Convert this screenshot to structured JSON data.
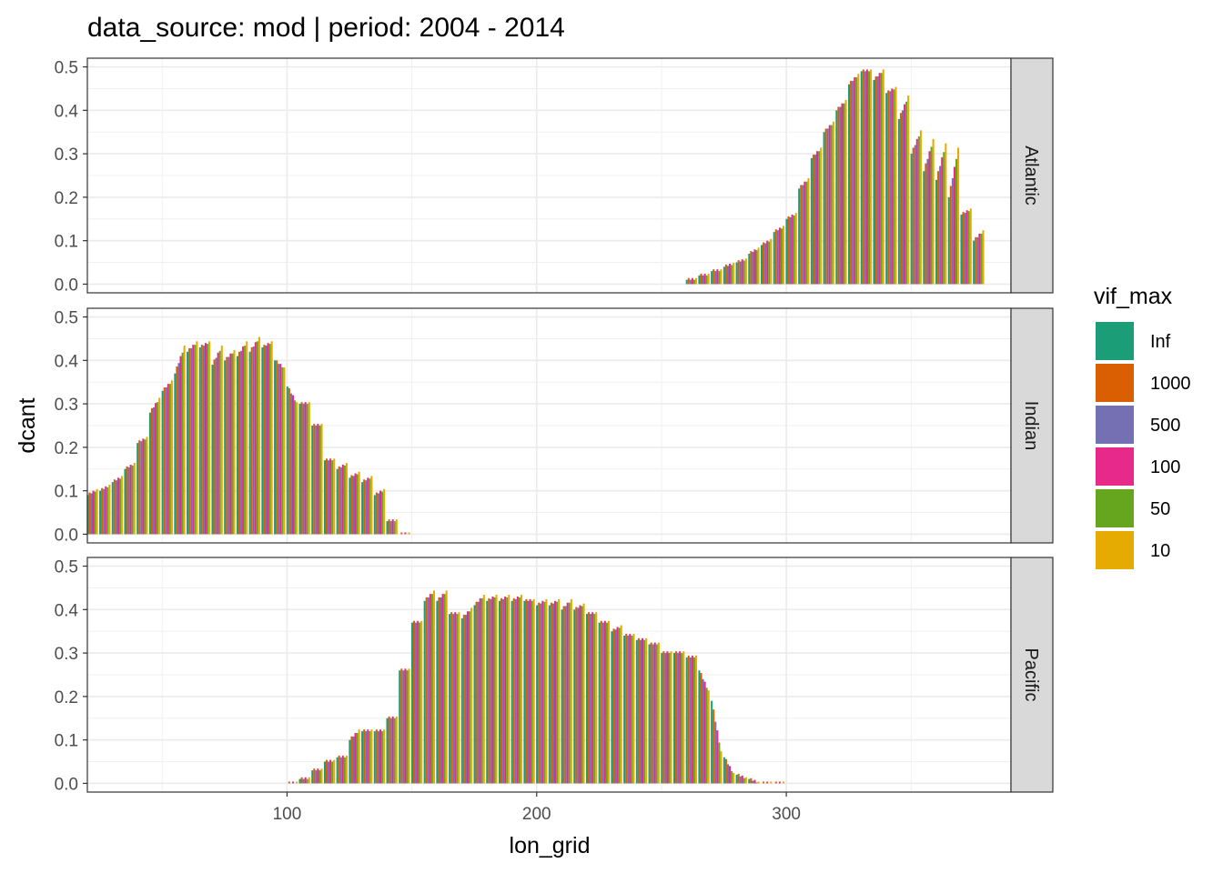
{
  "chart_data": {
    "type": "bar",
    "title": "data_source: mod | period: 2004 - 2014",
    "xlabel": "lon_grid",
    "ylabel": "dcant",
    "xlim": [
      20,
      390
    ],
    "ylim": [
      -0.02,
      0.52
    ],
    "x_ticks": [
      100,
      200,
      300
    ],
    "y_ticks": [
      0.0,
      0.1,
      0.2,
      0.3,
      0.4,
      0.5
    ],
    "grid": true,
    "legend_position": "right",
    "legend": {
      "title": "vif_max",
      "entries": [
        {
          "label": "Inf",
          "color": "#1B9E77"
        },
        {
          "label": "1000",
          "color": "#D95F02"
        },
        {
          "label": "500",
          "color": "#7570B3"
        },
        {
          "label": "100",
          "color": "#E7298A"
        },
        {
          "label": "50",
          "color": "#66A61E"
        },
        {
          "label": "10",
          "color": "#E6AB02"
        }
      ]
    },
    "series_order": [
      "Inf",
      "1000",
      "500",
      "100",
      "50",
      "10"
    ],
    "facet_by": "basin",
    "panels": [
      {
        "label": "Atlantic",
        "x": [
          262,
          267,
          272,
          277,
          282,
          287,
          292,
          297,
          302,
          307,
          312,
          317,
          322,
          327,
          332,
          337,
          342,
          347,
          352,
          357,
          362,
          367,
          372,
          377
        ],
        "values": [
          0.01,
          0.02,
          0.03,
          0.04,
          0.05,
          0.07,
          0.09,
          0.12,
          0.15,
          0.22,
          0.29,
          0.35,
          0.4,
          0.46,
          0.49,
          0.47,
          0.44,
          0.38,
          0.3,
          0.26,
          0.24,
          0.2,
          0.16,
          0.1
        ],
        "series_top_values": [
          0.01,
          0.02,
          0.03,
          0.045,
          0.055,
          0.08,
          0.1,
          0.13,
          0.16,
          0.24,
          0.31,
          0.37,
          0.42,
          0.48,
          0.49,
          0.49,
          0.45,
          0.43,
          0.35,
          0.33,
          0.32,
          0.31,
          0.17,
          0.12
        ]
      },
      {
        "label": "Indian",
        "x": [
          22,
          27,
          32,
          37,
          42,
          47,
          52,
          57,
          62,
          67,
          72,
          77,
          82,
          87,
          92,
          97,
          102,
          107,
          112,
          117,
          122,
          127,
          132,
          137,
          142,
          147
        ],
        "values": [
          0.09,
          0.1,
          0.12,
          0.15,
          0.21,
          0.28,
          0.33,
          0.37,
          0.42,
          0.43,
          0.39,
          0.4,
          0.41,
          0.42,
          0.43,
          0.4,
          0.34,
          0.3,
          0.25,
          0.17,
          0.15,
          0.13,
          0.12,
          0.09,
          0.03,
          0.0
        ],
        "series_top_values": [
          0.1,
          0.11,
          0.13,
          0.16,
          0.22,
          0.31,
          0.35,
          0.43,
          0.44,
          0.44,
          0.43,
          0.42,
          0.44,
          0.45,
          0.44,
          0.38,
          0.3,
          0.3,
          0.25,
          0.17,
          0.16,
          0.14,
          0.13,
          0.1,
          0.03,
          0.0
        ]
      },
      {
        "label": "Pacific",
        "x": [
          102,
          107,
          112,
          117,
          122,
          127,
          132,
          137,
          142,
          147,
          152,
          157,
          162,
          167,
          172,
          177,
          182,
          187,
          192,
          197,
          202,
          207,
          212,
          217,
          222,
          227,
          232,
          237,
          242,
          247,
          252,
          257,
          262,
          267,
          272,
          277,
          282,
          287,
          292,
          297
        ],
        "values": [
          0.0,
          0.01,
          0.03,
          0.05,
          0.06,
          0.1,
          0.12,
          0.12,
          0.15,
          0.26,
          0.37,
          0.42,
          0.42,
          0.39,
          0.38,
          0.41,
          0.42,
          0.42,
          0.42,
          0.42,
          0.41,
          0.41,
          0.4,
          0.4,
          0.39,
          0.37,
          0.35,
          0.34,
          0.33,
          0.32,
          0.3,
          0.3,
          0.29,
          0.26,
          0.19,
          0.06,
          0.02,
          0.01,
          0.0,
          0.0
        ],
        "series_top_values": [
          0.0,
          0.01,
          0.03,
          0.05,
          0.06,
          0.12,
          0.12,
          0.12,
          0.15,
          0.26,
          0.37,
          0.44,
          0.44,
          0.39,
          0.4,
          0.43,
          0.43,
          0.43,
          0.43,
          0.42,
          0.42,
          0.42,
          0.42,
          0.41,
          0.39,
          0.37,
          0.36,
          0.34,
          0.33,
          0.32,
          0.3,
          0.3,
          0.29,
          0.21,
          0.07,
          0.02,
          0.01,
          0.0,
          0.0,
          0.0
        ]
      }
    ]
  }
}
